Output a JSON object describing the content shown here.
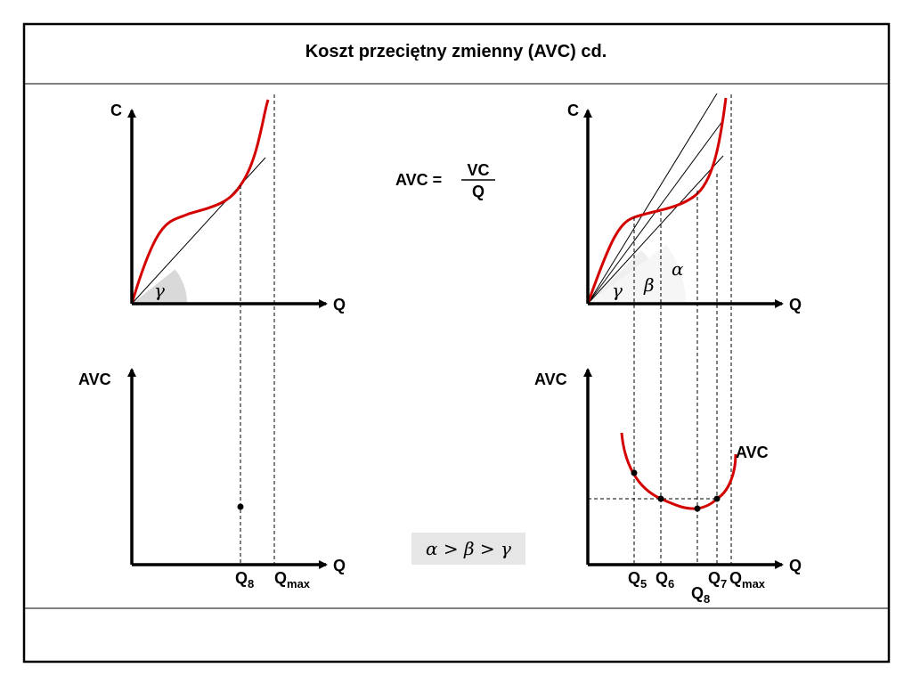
{
  "title": "Koszt  przeciętny  zmienny  (AVC)  cd.",
  "formula": {
    "lhs": "AVC =",
    "numerator": "VC",
    "denominator": "Q"
  },
  "axes": {
    "cost": "C",
    "quantity": "Q",
    "avc": "AVC"
  },
  "curve_label": "AVC",
  "angles": {
    "alpha": "α",
    "beta": "β",
    "gamma": "γ"
  },
  "inequality": "α  > β  > γ",
  "left_ticks": [
    {
      "main": "Q",
      "sub": "8"
    },
    {
      "main": "Q",
      "sub": "max"
    }
  ],
  "right_ticks": [
    {
      "main": "Q",
      "sub": "5"
    },
    {
      "main": "Q",
      "sub": "6"
    },
    {
      "main": "Q",
      "sub": "8"
    },
    {
      "main": "Q",
      "sub": "7"
    },
    {
      "main": "Q",
      "sub": "max"
    }
  ],
  "colors": {
    "curve": "#d40000",
    "border": "#000000",
    "angle_fill": "#d9d9d9",
    "inequality_bg": "#e6e6e6"
  }
}
